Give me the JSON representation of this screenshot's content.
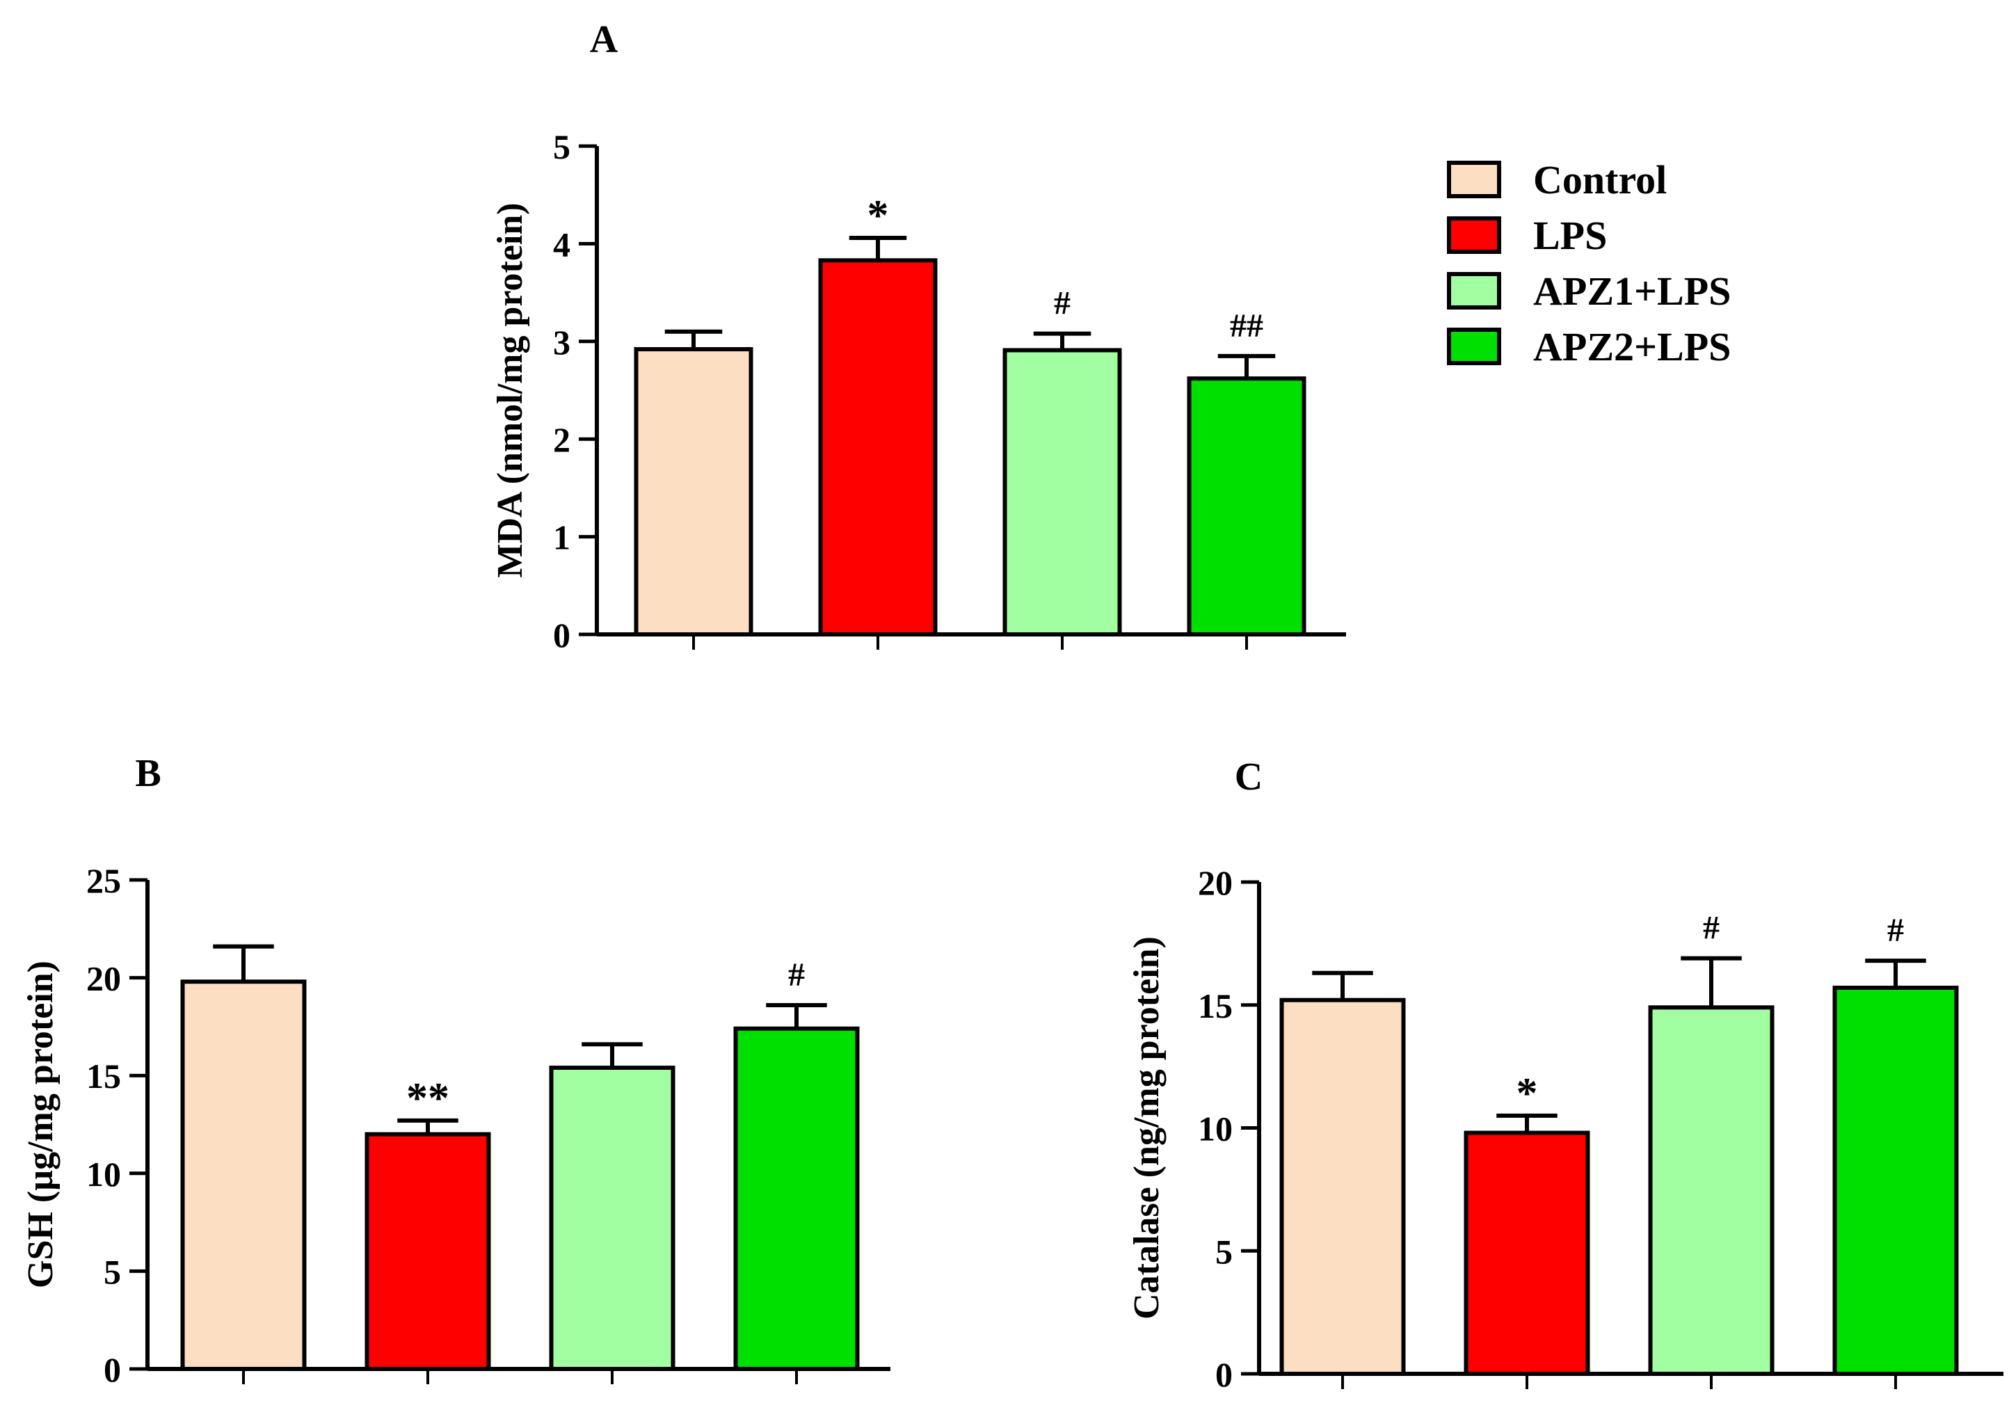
{
  "colors": {
    "control": "#FCDFC3",
    "lps": "#FF0000",
    "apz1": "#A1FFA1",
    "apz2": "#00E000"
  },
  "legend": [
    {
      "label": "Control",
      "color": "#FCDFC3"
    },
    {
      "label": "LPS",
      "color": "#FF0000"
    },
    {
      "label": "APZ1+LPS",
      "color": "#A1FFA1"
    },
    {
      "label": "APZ2+LPS",
      "color": "#00E000"
    }
  ],
  "chart_data": [
    {
      "panel": "A",
      "type": "bar",
      "categories": [
        "Control",
        "LPS",
        "APZ1+LPS",
        "APZ2+LPS"
      ],
      "values": [
        2.92,
        3.83,
        2.91,
        2.62
      ],
      "errors": [
        0.18,
        0.23,
        0.17,
        0.23
      ],
      "annotations": [
        "",
        "*",
        "#",
        "##"
      ],
      "ylabel": "MDA (nmol/mg protein)",
      "ylim": [
        0,
        5
      ],
      "yticks": [
        0,
        1,
        2,
        3,
        4,
        5
      ],
      "grid": false
    },
    {
      "panel": "B",
      "type": "bar",
      "categories": [
        "Control",
        "LPS",
        "APZ1+LPS",
        "APZ2+LPS"
      ],
      "values": [
        19.8,
        12.0,
        15.4,
        17.4
      ],
      "errors": [
        1.8,
        0.7,
        1.2,
        1.2
      ],
      "annotations": [
        "",
        "**",
        "",
        "#"
      ],
      "ylabel": "GSH (µg/mg protein)",
      "ylim": [
        0,
        25
      ],
      "yticks": [
        0,
        5,
        10,
        15,
        20,
        25
      ],
      "grid": false
    },
    {
      "panel": "C",
      "type": "bar",
      "categories": [
        "Control",
        "LPS",
        "APZ1+LPS",
        "APZ2+LPS"
      ],
      "values": [
        15.2,
        9.8,
        14.9,
        15.7
      ],
      "errors": [
        1.1,
        0.7,
        2.0,
        1.1
      ],
      "annotations": [
        "",
        "*",
        "#",
        "#"
      ],
      "ylabel": "Catalase (ng/mg protein)",
      "ylim": [
        0,
        20
      ],
      "yticks": [
        0,
        5,
        10,
        15,
        20
      ],
      "grid": false
    }
  ]
}
